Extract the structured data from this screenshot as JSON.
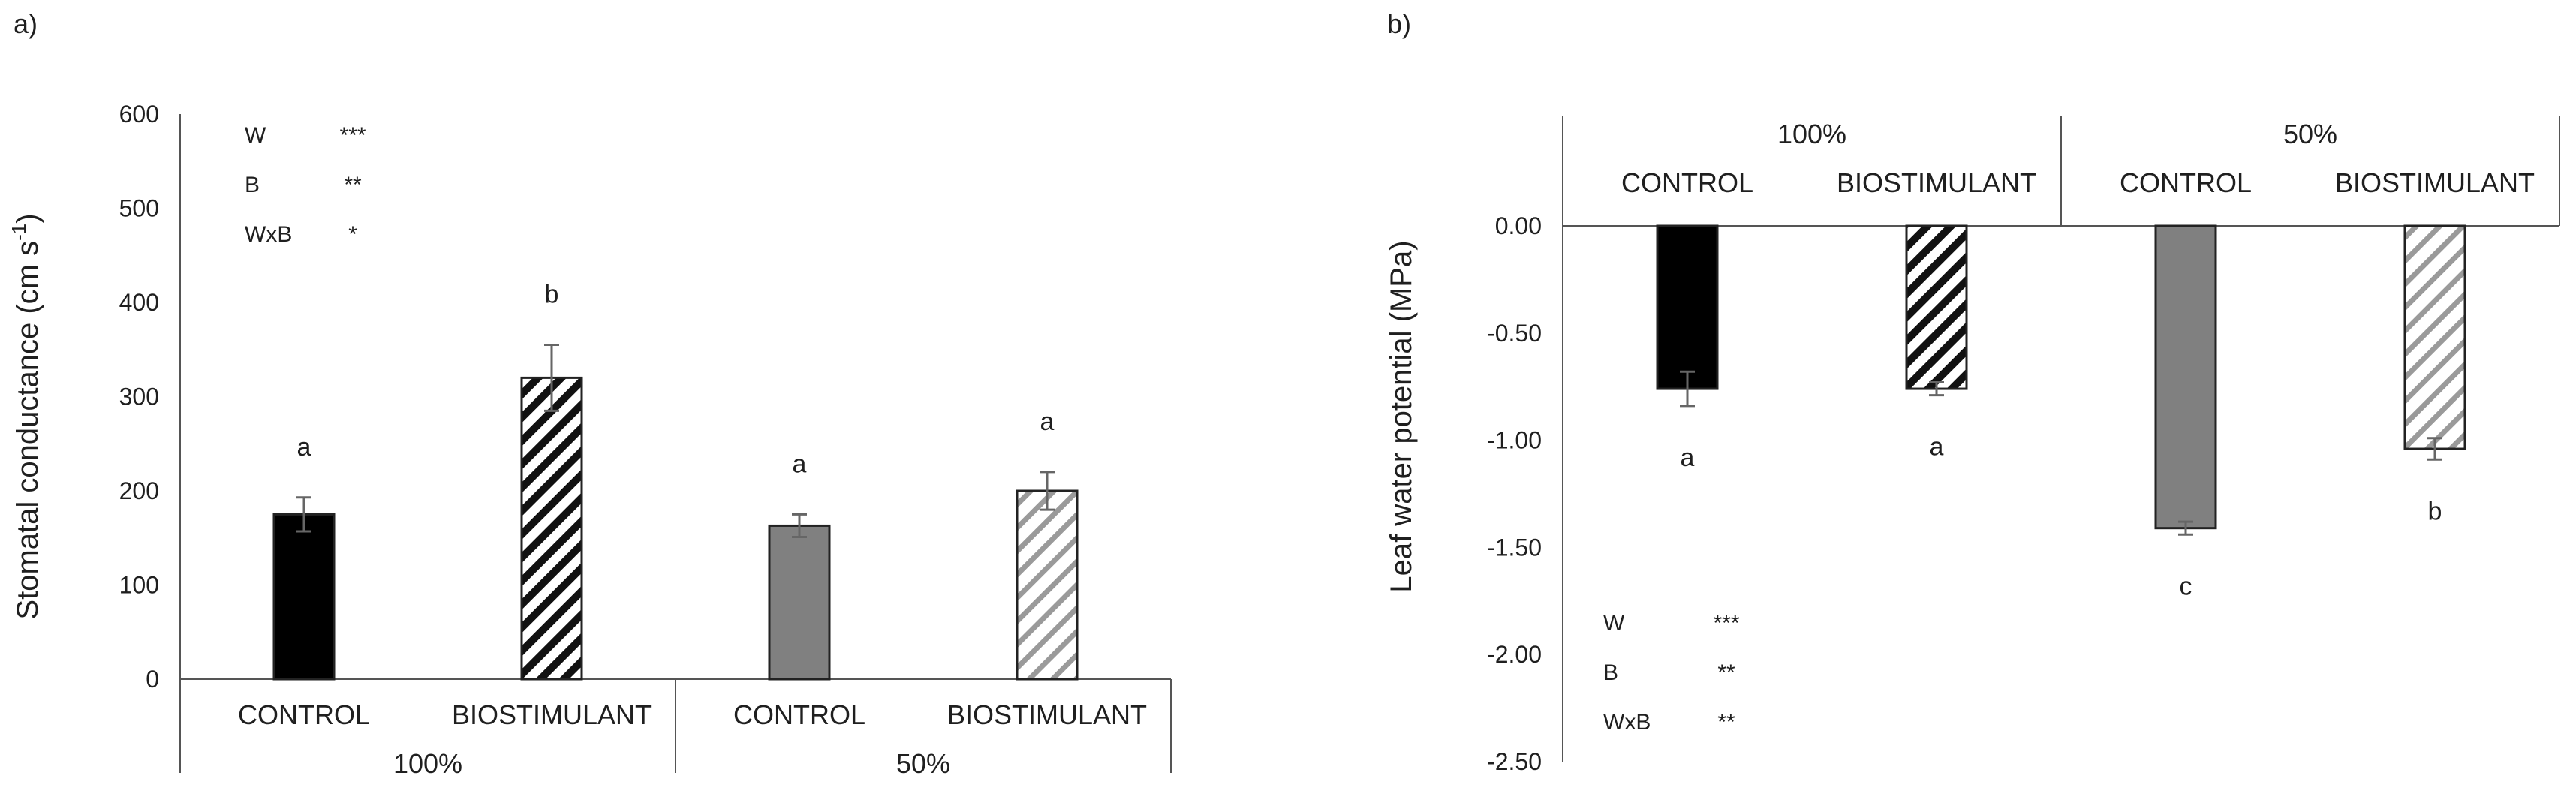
{
  "chart_data": [
    {
      "panel": "a)",
      "type": "bar",
      "title": "",
      "ylabel": "Stomatal conductance (cm s",
      "ylabel_unit_exp": "-1",
      "ylabel_close": ")",
      "ylim": [
        0,
        600
      ],
      "yticks": [
        "0",
        "100",
        "200",
        "300",
        "400",
        "500",
        "600"
      ],
      "groups": [
        "100%",
        "50%"
      ],
      "categories": [
        "CONTROL",
        "BIOSTIMULANT",
        "CONTROL",
        "BIOSTIMULANT"
      ],
      "values": [
        175,
        320,
        163,
        200
      ],
      "errors": [
        18,
        35,
        12,
        20
      ],
      "letters": [
        "a",
        "b",
        "a",
        "a"
      ],
      "fills": [
        "black",
        "hatch-dense",
        "#808080",
        "hatch-light"
      ],
      "stats": [
        {
          "term": "W",
          "sig": "***"
        },
        {
          "term": "B",
          "sig": "**"
        },
        {
          "term": "WxB",
          "sig": "*"
        }
      ]
    },
    {
      "panel": "b)",
      "type": "bar",
      "title": "",
      "ylabel": "Leaf water potential (MPa)",
      "ylim": [
        -2.5,
        0.5
      ],
      "yticks": [
        "0.00",
        "-0.50",
        "-1.00",
        "-1.50",
        "-2.00",
        "-2.50"
      ],
      "groups": [
        "100%",
        "50%"
      ],
      "categories": [
        "CONTROL",
        "BIOSTIMULANT",
        "CONTROL",
        "BIOSTIMULANT"
      ],
      "values": [
        -0.76,
        -0.76,
        -1.41,
        -1.04
      ],
      "errors": [
        0.08,
        0.03,
        0.03,
        0.05
      ],
      "letters": [
        "a",
        "a",
        "c",
        "b"
      ],
      "fills": [
        "black",
        "hatch-dense",
        "#808080",
        "hatch-light"
      ],
      "stats": [
        {
          "term": "W",
          "sig": "***"
        },
        {
          "term": "B",
          "sig": "**"
        },
        {
          "term": "WxB",
          "sig": "**"
        }
      ]
    }
  ]
}
